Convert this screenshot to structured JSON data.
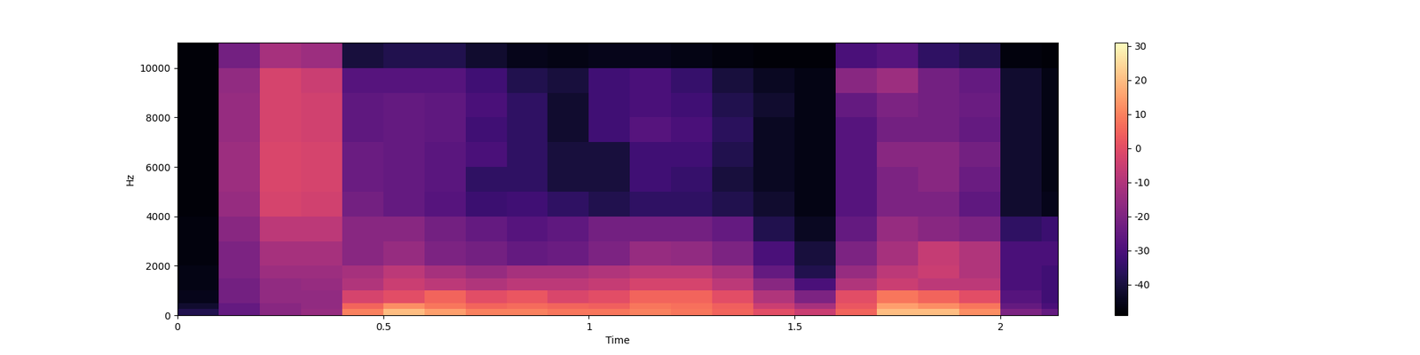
{
  "chart_data": {
    "type": "heatmap",
    "x_label": "Time",
    "y_label": "Hz",
    "color": "magma",
    "xlim": [
      0,
      2.14
    ],
    "xticks": [
      0,
      0.5,
      1,
      1.5,
      2
    ],
    "ylim": [
      0,
      11025
    ],
    "yticks": [
      0,
      2000,
      4000,
      6000,
      8000,
      10000
    ],
    "x_edges": [
      0,
      0.1,
      0.2,
      0.3,
      0.4,
      0.5,
      0.6,
      0.7,
      0.8,
      0.9,
      1.0,
      1.1,
      1.2,
      1.3,
      1.4,
      1.5,
      1.6,
      1.7,
      1.8,
      1.9,
      2.0,
      2.1,
      2.14
    ],
    "y_edges": [
      0,
      250,
      500,
      1000,
      1500,
      2000,
      3000,
      4000,
      5000,
      6000,
      7000,
      8000,
      9000,
      10000,
      11025
    ],
    "cells": [
      [
        -38,
        -42,
        -45,
        -46,
        -46,
        -47,
        -47,
        -48,
        -48,
        -48,
        -48,
        -48,
        -48,
        -48
      ],
      [
        -25,
        -25,
        -22,
        -22,
        -20,
        -20,
        -18,
        -15,
        -14,
        -14,
        -15,
        -15,
        -16,
        -22
      ],
      [
        -18,
        -18,
        -16,
        -16,
        -14,
        -12,
        -8,
        -3,
        -2,
        -2,
        -3,
        -3,
        -3,
        -12
      ],
      [
        -15,
        -16,
        -16,
        -15,
        -14,
        -12,
        -8,
        -4,
        -3,
        -3,
        -4,
        -4,
        -5,
        -14
      ],
      [
        10,
        5,
        -3,
        -10,
        -12,
        -18,
        -18,
        -22,
        -24,
        -24,
        -26,
        -26,
        -28,
        -40
      ],
      [
        20,
        12,
        0,
        -5,
        -8,
        -15,
        -18,
        -25,
        -25,
        -25,
        -25,
        -25,
        -28,
        -38
      ],
      [
        15,
        8,
        5,
        -8,
        -12,
        -20,
        -22,
        -28,
        -27,
        -27,
        -26,
        -26,
        -28,
        -38
      ],
      [
        10,
        5,
        0,
        -10,
        -15,
        -22,
        -25,
        -33,
        -35,
        -30,
        -32,
        -30,
        -32,
        -42
      ],
      [
        10,
        6,
        2,
        -8,
        -12,
        -25,
        -28,
        -32,
        -35,
        -35,
        -35,
        -35,
        -38,
        -45
      ],
      [
        8,
        5,
        -2,
        -8,
        -12,
        -24,
        -26,
        -35,
        -40,
        -40,
        -42,
        -42,
        -40,
        -46
      ],
      [
        8,
        4,
        0,
        -6,
        -10,
        -20,
        -22,
        -38,
        -40,
        -40,
        -32,
        -32,
        -32,
        -45
      ],
      [
        10,
        8,
        5,
        -3,
        -8,
        -15,
        -22,
        -35,
        -32,
        -32,
        -28,
        -30,
        -30,
        -45
      ],
      [
        8,
        7,
        5,
        -3,
        -8,
        -16,
        -22,
        -35,
        -34,
        -32,
        -30,
        -32,
        -34,
        -46
      ],
      [
        5,
        4,
        0,
        -8,
        -12,
        -20,
        -25,
        -38,
        -40,
        -38,
        -36,
        -38,
        -40,
        -47
      ],
      [
        0,
        -5,
        -10,
        -18,
        -25,
        -30,
        -38,
        -42,
        -44,
        -44,
        -44,
        -42,
        -44,
        -48
      ],
      [
        -5,
        -12,
        -20,
        -30,
        -38,
        -40,
        -44,
        -46,
        -46,
        -46,
        -46,
        -46,
        -46,
        -48
      ],
      [
        5,
        2,
        0,
        -10,
        -15,
        -20,
        -25,
        -28,
        -28,
        -28,
        -28,
        -25,
        -18,
        -30
      ],
      [
        20,
        15,
        8,
        -5,
        -8,
        -12,
        -15,
        -20,
        -20,
        -18,
        -22,
        -20,
        -14,
        -28
      ],
      [
        20,
        12,
        5,
        -8,
        -5,
        -6,
        -18,
        -20,
        -18,
        -18,
        -22,
        -22,
        -22,
        -35
      ],
      [
        12,
        8,
        0,
        -8,
        -10,
        -10,
        -20,
        -26,
        -24,
        -22,
        -25,
        -24,
        -25,
        -38
      ],
      [
        -20,
        -25,
        -28,
        -30,
        -30,
        -30,
        -35,
        -42,
        -42,
        -42,
        -42,
        -42,
        -42,
        -47
      ],
      [
        -25,
        -30,
        -32,
        -32,
        -32,
        -30,
        -33,
        -45,
        -46,
        -46,
        -46,
        -46,
        -46,
        -48
      ]
    ],
    "color_range": [
      -49,
      31
    ],
    "color_ticks": [
      -40,
      -30,
      -20,
      -10,
      0,
      10,
      20,
      30
    ]
  }
}
